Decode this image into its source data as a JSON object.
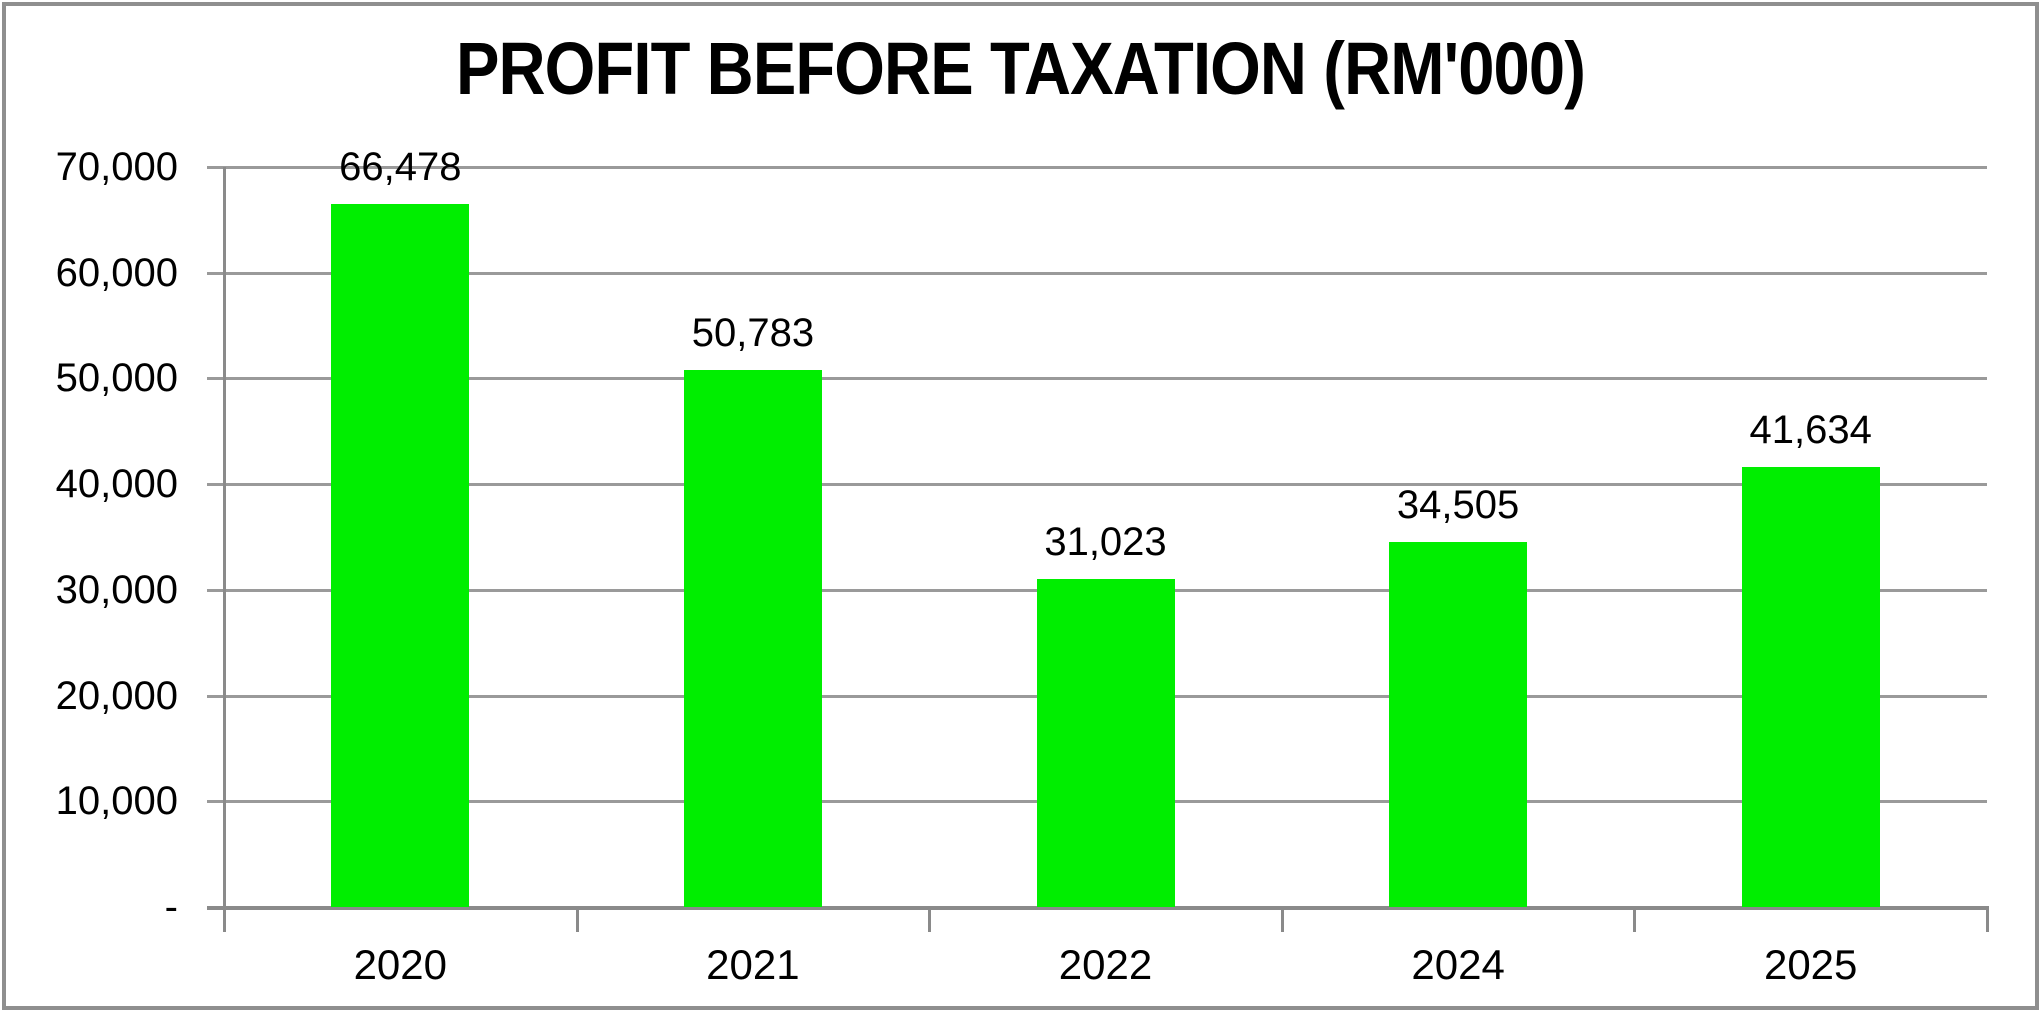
{
  "chart_data": {
    "type": "bar",
    "title": "PROFIT BEFORE TAXATION (RM'000)",
    "categories": [
      "2020",
      "2021",
      "2022",
      "2024",
      "2025"
    ],
    "values": [
      66478,
      50783,
      31023,
      34505,
      41634
    ],
    "value_labels": [
      "66,478",
      "50,783",
      "31,023",
      "34,505",
      "41,634"
    ],
    "xlabel": "",
    "ylabel": "",
    "y_axis": {
      "min": 0,
      "max": 70000,
      "tick_step": 10000,
      "tick_values": [
        70000,
        60000,
        50000,
        40000,
        30000,
        20000,
        10000,
        0
      ],
      "tick_labels": [
        "70,000",
        "60,000",
        "50,000",
        "40,000",
        "30,000",
        "20,000",
        "10,000",
        "-"
      ]
    },
    "grid": true,
    "legend": null,
    "bar_color": "#00EE00"
  },
  "colors": {
    "bar": "#00EE00",
    "gridline": "#9a9a9a",
    "axis": "#8a8a8a",
    "border": "#8f8f8f",
    "text": "#000000",
    "background": "#ffffff"
  }
}
